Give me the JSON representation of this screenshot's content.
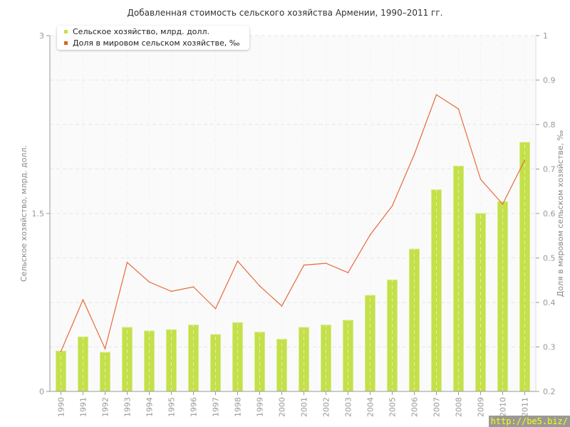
{
  "chart_data": {
    "type": "bar+line",
    "title": "Добавленная стоимость сельского хозяйства Армении, 1990–2011 гг.",
    "categories": [
      "1990",
      "1991",
      "1992",
      "1993",
      "1994",
      "1995",
      "1996",
      "1997",
      "1998",
      "1999",
      "2000",
      "2001",
      "2002",
      "2003",
      "2004",
      "2005",
      "2006",
      "2007",
      "2008",
      "2009",
      "2010",
      "2011"
    ],
    "series": [
      {
        "name": "Сельское хозяйство, млрд. долл.",
        "type": "bar",
        "axis": "left",
        "color": "#c4e04a",
        "values": [
          0.34,
          0.46,
          0.33,
          0.54,
          0.51,
          0.52,
          0.56,
          0.48,
          0.58,
          0.5,
          0.44,
          0.54,
          0.56,
          0.6,
          0.81,
          0.94,
          1.2,
          1.7,
          1.9,
          1.5,
          1.6,
          2.1
        ]
      },
      {
        "name": "Доля в мировом сельском хозяйстве, ‰",
        "type": "line",
        "axis": "right",
        "color": "#e8693a",
        "values": [
          0.29,
          0.406,
          0.296,
          0.49,
          0.446,
          0.425,
          0.435,
          0.386,
          0.493,
          0.437,
          0.392,
          0.484,
          0.488,
          0.467,
          0.552,
          0.617,
          0.733,
          0.867,
          0.835,
          0.677,
          0.621,
          0.72
        ]
      }
    ],
    "ylabel": "Сельское хозяйство, млрд. долл.",
    "ylim": [
      0,
      3
    ],
    "yticks": [
      "0",
      "1.5",
      "3"
    ],
    "y2label": "Доля в мировом сельском хозяйстве, ‰",
    "y2lim": [
      0.2,
      1
    ],
    "y2ticks": [
      "0.2",
      "0.3",
      "0.4",
      "0.5",
      "0.6",
      "0.7",
      "0.8",
      "0.9",
      "1"
    ],
    "grid": true,
    "legend_position": "top-left"
  },
  "watermark": "http://be5.biz/"
}
